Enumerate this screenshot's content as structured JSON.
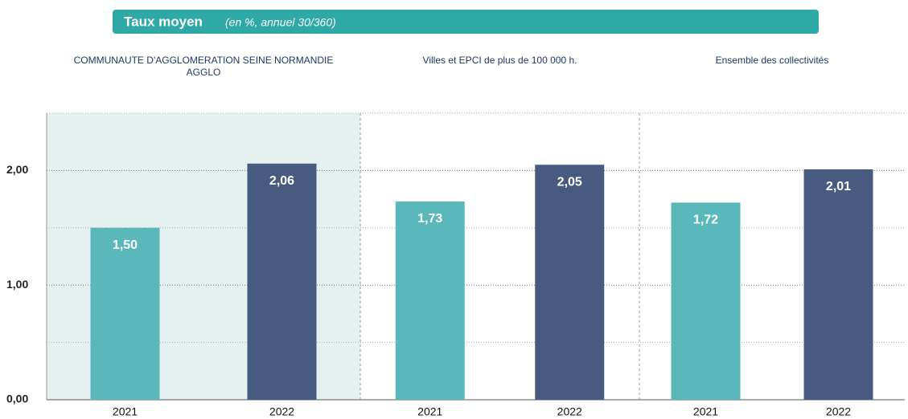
{
  "chart_data": {
    "type": "bar",
    "title": "Taux moyen",
    "subtitle": "(en %, annuel 30/360)",
    "categories": [
      "2021",
      "2022"
    ],
    "colors": [
      "#5ab8bb",
      "#475b80"
    ],
    "groups": [
      {
        "name": "COMMUNAUTE D'AGGLOMERATION SEINE NORMANDIE AGGLO",
        "values": [
          1.5,
          2.06
        ],
        "value_labels": [
          "1,50",
          "2,06"
        ]
      },
      {
        "name": "Villes et EPCI de plus de 100 000 h.",
        "values": [
          1.73,
          2.05
        ],
        "value_labels": [
          "1,73",
          "2,05"
        ]
      },
      {
        "name": "Ensemble des collectivités",
        "values": [
          1.72,
          2.01
        ],
        "value_labels": [
          "1,72",
          "2,01"
        ]
      }
    ],
    "ylim": [
      0,
      2.5
    ],
    "yticks": [
      {
        "value": 0,
        "label": "0,00"
      },
      {
        "value": 1,
        "label": "1,00"
      },
      {
        "value": 2,
        "label": "2,00"
      }
    ],
    "minor_yticks": [
      0.5,
      1.5,
      2.5
    ],
    "grid": true
  }
}
